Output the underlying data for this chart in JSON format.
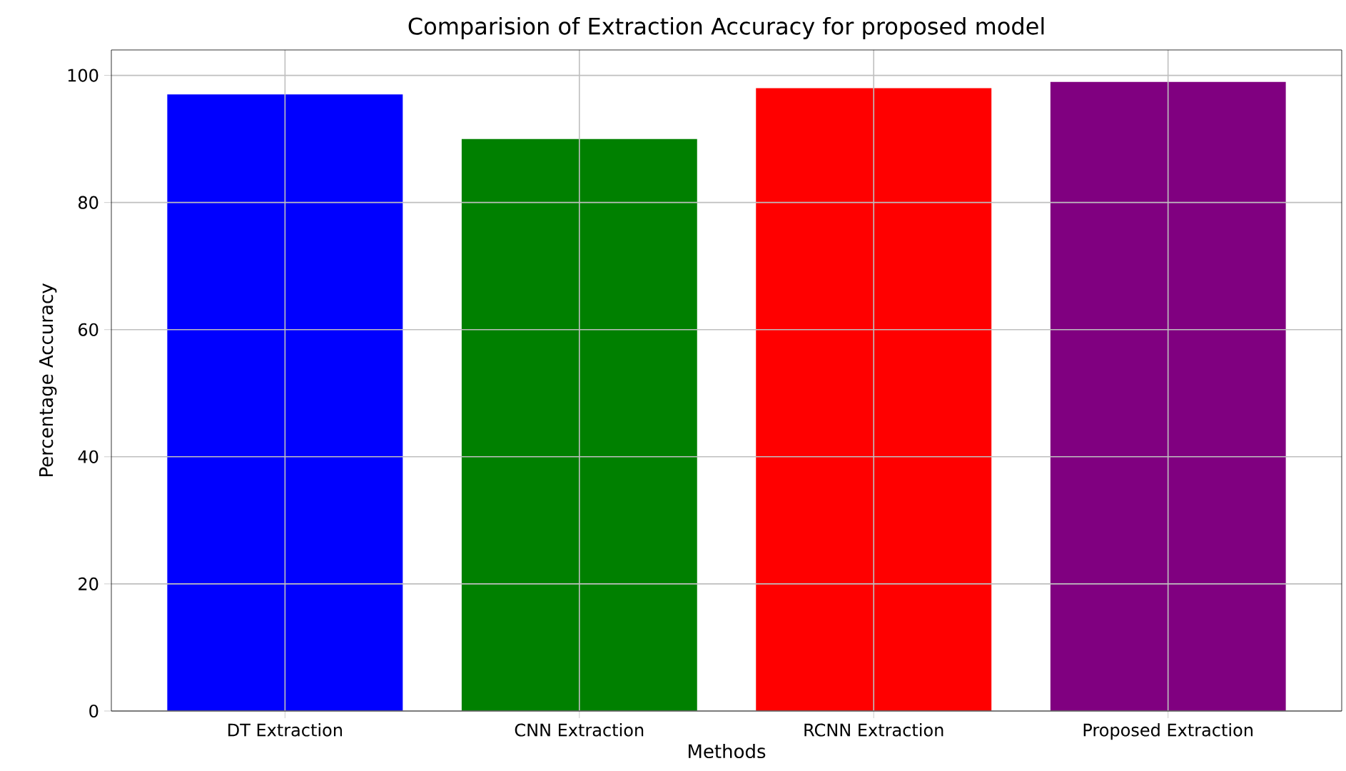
{
  "chart_data": {
    "type": "bar",
    "title": "Comparision of Extraction Accuracy for proposed model",
    "xlabel": "Methods",
    "ylabel": "Percentage Accuracy",
    "categories": [
      "DT Extraction",
      "CNN Extraction",
      "RCNN Extraction",
      "Proposed Extraction"
    ],
    "values": [
      97,
      90,
      98,
      99
    ],
    "colors": [
      "#0000ff",
      "#008000",
      "#ff0000",
      "#800080"
    ],
    "ylim": [
      0,
      104
    ],
    "yticks": [
      0,
      20,
      40,
      60,
      80,
      100
    ],
    "grid": true
  }
}
